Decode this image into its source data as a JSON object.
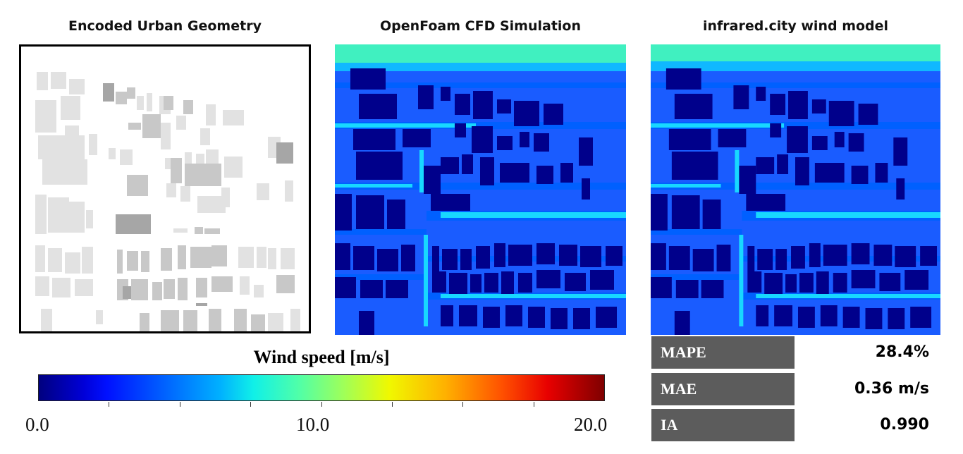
{
  "panels": {
    "geometry_title": "Encoded Urban Geometry",
    "cfd_title": "OpenFoam CFD Simulation",
    "model_title": "infrared.city wind model"
  },
  "legend": {
    "title": "Wind speed [m/s]",
    "min_label": "0.0",
    "mid_label": "10.0",
    "max_label": "20.0",
    "range": [
      0,
      20
    ],
    "colormap": "jet"
  },
  "metrics": [
    {
      "name": "MAPE",
      "value": "28.4%"
    },
    {
      "name": "MAE",
      "value": "0.36 m/s"
    },
    {
      "name": "IA",
      "value": "0.990"
    }
  ],
  "colors": {
    "field_background": "#00e0d0",
    "building": "#00008b",
    "metric_box": "#5c5c5c"
  }
}
